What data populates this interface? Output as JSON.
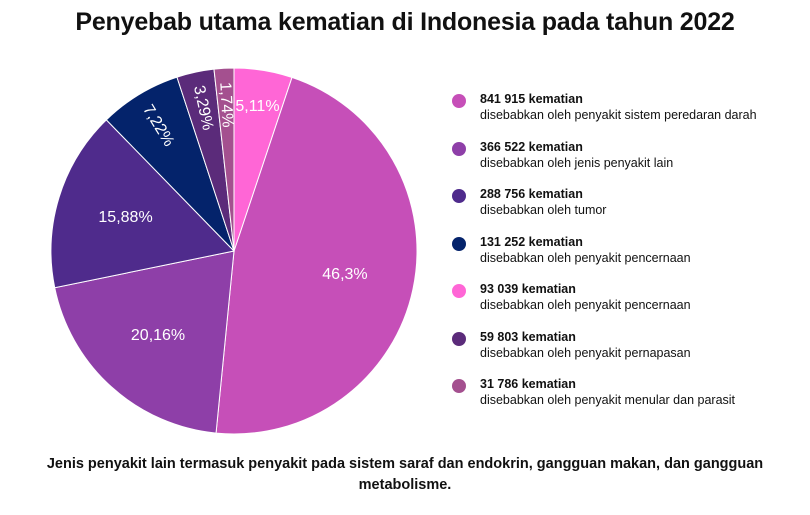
{
  "chart_data": {
    "type": "pie",
    "title": "Penyebab utama kematian di Indonesia pada tahun 2022",
    "slices": [
      {
        "label": "46,3%",
        "value": 46.3,
        "color": "#c64fb8"
      },
      {
        "label": "20,16%",
        "value": 20.16,
        "color": "#8e3fa8"
      },
      {
        "label": "15,88%",
        "value": 15.88,
        "color": "#4f2b8c"
      },
      {
        "label": "7,22%",
        "value": 7.22,
        "color": "#04236b"
      },
      {
        "label": "3,29%",
        "value": 3.29,
        "color": "#5b2b7a"
      },
      {
        "label": "1,74%",
        "value": 1.74,
        "color": "#a4508f"
      },
      {
        "label": "5,11%",
        "value": 5.11,
        "color": "#ff66d6"
      }
    ],
    "legend": [
      {
        "count": "841 915 kematian",
        "desc": "disebabkan oleh penyakit sistem peredaran darah",
        "color": "#c64fb8"
      },
      {
        "count": "366 522 kematian",
        "desc": "disebabkan oleh jenis penyakit lain",
        "color": "#8e3fa8"
      },
      {
        "count": "288 756 kematian",
        "desc": "disebabkan oleh tumor",
        "color": "#4f2b8c"
      },
      {
        "count": "131 252 kematian",
        "desc": "disebabkan oleh penyakit pencernaan",
        "color": "#04236b"
      },
      {
        "count": "93 039 kematian",
        "desc": "disebabkan oleh penyakit pencernaan",
        "color": "#ff66d6"
      },
      {
        "count": "59 803 kematian",
        "desc": "disebabkan oleh penyakit pernapasan",
        "color": "#5b2b7a"
      },
      {
        "count": "31 786 kematian",
        "desc": "disebabkan oleh penyakit menular dan parasit",
        "color": "#a4508f"
      }
    ],
    "legend_placement": "right"
  },
  "footnote": "Jenis penyakit lain termasuk penyakit pada sistem saraf dan endokrin, gangguan makan, dan gangguan metabolisme."
}
